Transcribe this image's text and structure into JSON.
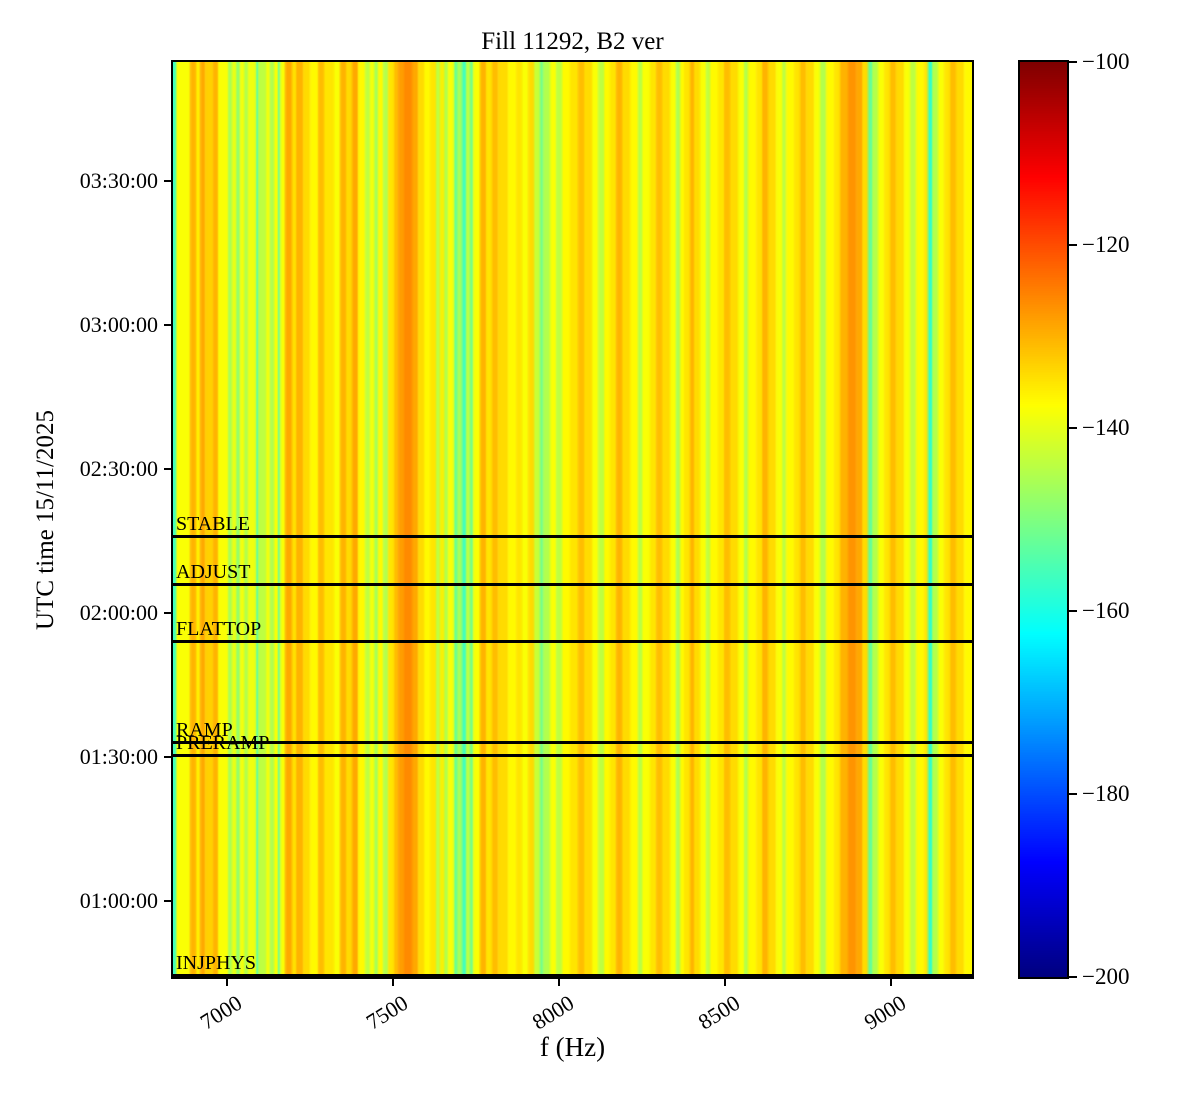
{
  "figure": {
    "title": "Fill 11292, B2 ver",
    "background": "#ffffff",
    "frame_color": "#000000"
  },
  "axes": {
    "x": {
      "label": "f (Hz)",
      "min_hz": 6837,
      "max_hz": 9245,
      "ticks": [
        7000,
        7500,
        8000,
        8500,
        9000
      ]
    },
    "y": {
      "label": "UTC time 15/11/2025",
      "min": "00:44:10",
      "max": "03:54:48",
      "ticks": [
        "01:00:00",
        "01:30:00",
        "02:00:00",
        "02:30:00",
        "03:00:00",
        "03:30:00"
      ]
    }
  },
  "colorbar": {
    "colormap": "jet",
    "vmin": -200,
    "vmax": -100,
    "tick_values": [
      -100,
      -120,
      -140,
      -160,
      -180,
      -200
    ]
  },
  "beam_modes": [
    {
      "label": "STABLE",
      "time": "02:16:00"
    },
    {
      "label": "ADJUST",
      "time": "02:06:00"
    },
    {
      "label": "FLATTOP",
      "time": "01:54:10"
    },
    {
      "label": "RAMP",
      "time": "01:33:05"
    },
    {
      "label": "PRERAMP",
      "time": "01:30:30"
    },
    {
      "label": "INJPHYS",
      "time": "00:44:30"
    }
  ],
  "chart_data": {
    "type": "heatmap",
    "title": "Fill 11292, B2 ver",
    "xlabel": "f (Hz)",
    "ylabel": "UTC time 15/11/2025",
    "x_range_hz": [
      6837,
      9245
    ],
    "y_range_utc": [
      "00:44:10",
      "03:54:48"
    ],
    "value_unit": "dB",
    "value_range": [
      -200,
      -100
    ],
    "colormap": "jet",
    "time_constant_columns": true,
    "columns_w_hz_value_db": [
      [
        9,
        -157
      ],
      [
        42,
        -138
      ],
      [
        18,
        -130
      ],
      [
        12,
        -136
      ],
      [
        15,
        -129
      ],
      [
        24,
        -133
      ],
      [
        15,
        -130
      ],
      [
        30,
        -138
      ],
      [
        12,
        -146
      ],
      [
        12,
        -139
      ],
      [
        12,
        -148
      ],
      [
        12,
        -138
      ],
      [
        12,
        -145
      ],
      [
        24,
        -139
      ],
      [
        6,
        -155
      ],
      [
        24,
        -144
      ],
      [
        12,
        -139
      ],
      [
        12,
        -146
      ],
      [
        12,
        -138
      ],
      [
        6,
        -154
      ],
      [
        15,
        -138
      ],
      [
        21,
        -129
      ],
      [
        12,
        -135
      ],
      [
        21,
        -130
      ],
      [
        21,
        -134
      ],
      [
        24,
        -137
      ],
      [
        18,
        -131
      ],
      [
        30,
        -135
      ],
      [
        18,
        -138
      ],
      [
        18,
        -130
      ],
      [
        18,
        -134
      ],
      [
        18,
        -129
      ],
      [
        21,
        -137
      ],
      [
        15,
        -144
      ],
      [
        12,
        -138
      ],
      [
        12,
        -146
      ],
      [
        15,
        -137
      ],
      [
        15,
        -145
      ],
      [
        18,
        -135
      ],
      [
        12,
        -131
      ],
      [
        18,
        -128
      ],
      [
        24,
        -126
      ],
      [
        18,
        -129
      ],
      [
        18,
        -134
      ],
      [
        18,
        -137
      ],
      [
        18,
        -135
      ],
      [
        12,
        -144
      ],
      [
        12,
        -136
      ],
      [
        12,
        -145
      ],
      [
        18,
        -138
      ],
      [
        9,
        -153
      ],
      [
        15,
        -146
      ],
      [
        12,
        -156
      ],
      [
        12,
        -144
      ],
      [
        9,
        -152
      ],
      [
        21,
        -138
      ],
      [
        18,
        -130
      ],
      [
        18,
        -135
      ],
      [
        18,
        -131
      ],
      [
        30,
        -134
      ],
      [
        24,
        -137
      ],
      [
        18,
        -135
      ],
      [
        18,
        -138
      ],
      [
        18,
        -134
      ],
      [
        18,
        -143
      ],
      [
        9,
        -152
      ],
      [
        21,
        -145
      ],
      [
        18,
        -138
      ],
      [
        18,
        -144
      ],
      [
        24,
        -137
      ],
      [
        24,
        -135
      ],
      [
        18,
        -131
      ],
      [
        24,
        -134
      ],
      [
        18,
        -138
      ],
      [
        18,
        -144
      ],
      [
        18,
        -137
      ],
      [
        18,
        -135
      ],
      [
        18,
        -130
      ],
      [
        24,
        -134
      ],
      [
        24,
        -137
      ],
      [
        12,
        -145
      ],
      [
        24,
        -138
      ],
      [
        18,
        -135
      ],
      [
        18,
        -131
      ],
      [
        24,
        -134
      ],
      [
        18,
        -138
      ],
      [
        12,
        -146
      ],
      [
        12,
        -137
      ],
      [
        18,
        -135
      ],
      [
        12,
        -130
      ],
      [
        18,
        -134
      ],
      [
        18,
        -138
      ],
      [
        12,
        -144
      ],
      [
        24,
        -137
      ],
      [
        18,
        -135
      ],
      [
        18,
        -131
      ],
      [
        24,
        -134
      ],
      [
        18,
        -138
      ],
      [
        12,
        -145
      ],
      [
        24,
        -137
      ],
      [
        18,
        -135
      ],
      [
        18,
        -130
      ],
      [
        24,
        -134
      ],
      [
        18,
        -138
      ],
      [
        12,
        -144
      ],
      [
        24,
        -137
      ],
      [
        18,
        -135
      ],
      [
        18,
        -131
      ],
      [
        24,
        -134
      ],
      [
        18,
        -138
      ],
      [
        18,
        -145
      ],
      [
        24,
        -137
      ],
      [
        18,
        -135
      ],
      [
        24,
        -130
      ],
      [
        24,
        -127
      ],
      [
        18,
        -129
      ],
      [
        18,
        -134
      ],
      [
        12,
        -153
      ],
      [
        18,
        -145
      ],
      [
        18,
        -138
      ],
      [
        18,
        -135
      ],
      [
        18,
        -131
      ],
      [
        24,
        -134
      ],
      [
        18,
        -138
      ],
      [
        18,
        -144
      ],
      [
        24,
        -137
      ],
      [
        12,
        -135
      ],
      [
        12,
        -158
      ],
      [
        18,
        -145
      ],
      [
        18,
        -138
      ],
      [
        18,
        -135
      ],
      [
        18,
        -131
      ],
      [
        24,
        -134
      ],
      [
        24,
        -137
      ]
    ]
  }
}
